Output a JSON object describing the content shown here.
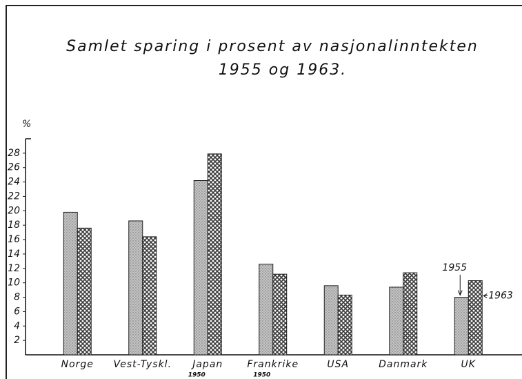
{
  "chart_data": {
    "type": "bar",
    "title": "Samlet sparing i prosent av nasjonalinntekten",
    "subtitle": "1955 og 1963.",
    "y_label": "%",
    "categories": [
      "Norge",
      "Vest-Tyskl.",
      "Japan",
      "Frankrike",
      "USA",
      "Danmark",
      "UK"
    ],
    "category_notes": [
      null,
      null,
      "1950",
      "1950",
      null,
      null,
      null
    ],
    "series": [
      {
        "name": "1955",
        "color": "#c4c4c4",
        "values": [
          19.8,
          18.6,
          24.2,
          12.6,
          9.6,
          9.4,
          8.0
        ]
      },
      {
        "name": "1963",
        "color": "#3a3a3a",
        "values": [
          17.6,
          16.4,
          27.9,
          11.2,
          8.3,
          11.4,
          10.3
        ]
      }
    ],
    "ylim": [
      0,
      30
    ],
    "yticks": [
      2,
      4,
      6,
      8,
      10,
      12,
      14,
      16,
      18,
      20,
      22,
      24,
      26,
      28
    ]
  }
}
